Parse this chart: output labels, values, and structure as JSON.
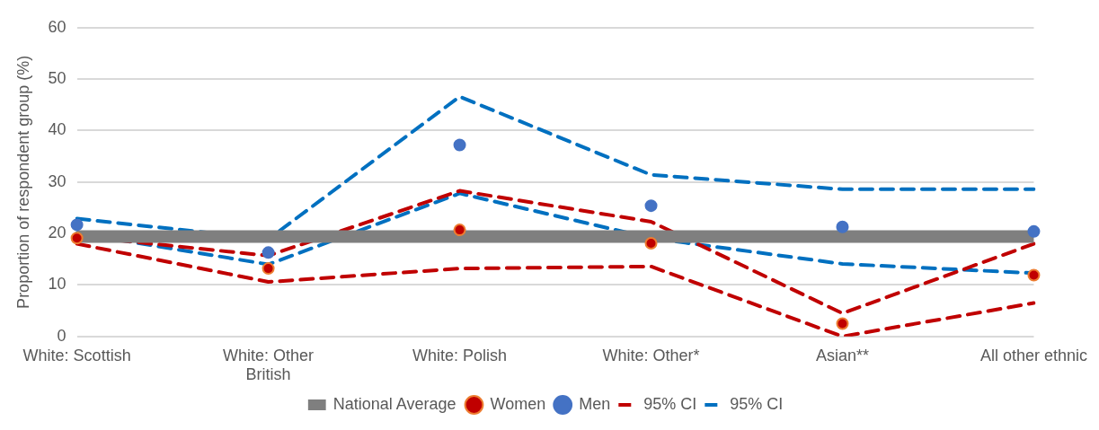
{
  "chart_data": {
    "type": "line",
    "ylabel": "Proportion of respondent group (%)",
    "categories": [
      "White: Scottish",
      "White: Other British",
      "White: Polish",
      "White: Other*",
      "Asian**",
      "All other ethnic"
    ],
    "ylim": [
      0,
      60
    ],
    "yticks": [
      0,
      10,
      20,
      30,
      40,
      50,
      60
    ],
    "grid": "y",
    "legend": "bottom",
    "marker": "circle",
    "series": [
      {
        "name": "National Average",
        "type": "line",
        "color": "#7f7f7f",
        "line_style": "solid",
        "marker": "none",
        "values": [
          19.4,
          19.4,
          19.4,
          19.4,
          19.4,
          19.4
        ]
      },
      {
        "name": "Women",
        "type": "scatter",
        "color": "#c00000",
        "values": [
          19.1,
          13.2,
          20.7,
          18.1,
          2.5,
          11.9
        ]
      },
      {
        "name": "Men",
        "type": "scatter",
        "color": "#4472c4",
        "values": [
          21.7,
          16.3,
          37.2,
          25.4,
          21.3,
          20.4
        ]
      },
      {
        "name": "95% CI",
        "type": "line",
        "color": "#c00000",
        "line_style": "dashed",
        "marker": "none",
        "values": [
          19.5,
          15.7,
          28.3,
          22.3,
          4.5,
          18
        ]
      },
      {
        "type": "line",
        "color": "#c00000",
        "line_style": "dashed",
        "marker": "none",
        "values": [
          18,
          10.6,
          13.2,
          13.6,
          0,
          6.5
        ]
      },
      {
        "name": "95% CI",
        "type": "line",
        "color": "#0070c0",
        "line_style": "dashed",
        "marker": "none",
        "values": [
          22.9,
          18.9,
          46.6,
          31.4,
          28.6,
          28.6
        ]
      },
      {
        "type": "line",
        "color": "#0070c0",
        "line_style": "dashed",
        "marker": "none",
        "values": [
          20.1,
          14,
          27.8,
          19.1,
          14.1,
          12.3
        ]
      }
    ]
  }
}
